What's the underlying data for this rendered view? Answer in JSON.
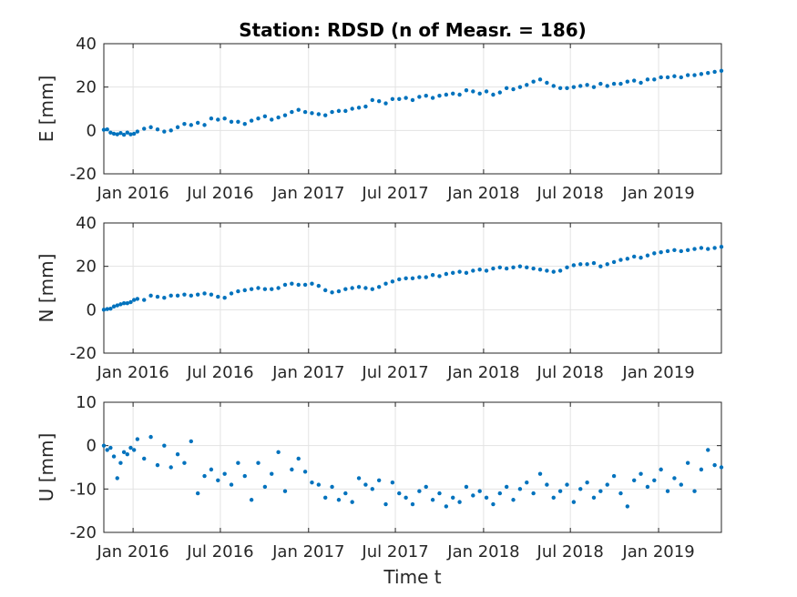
{
  "figure": {
    "title": "Station: RDSD (n of Measr. = 186)",
    "xlabel": "Time t"
  },
  "colors": {
    "marker": "#0072bd",
    "grid": "#e3e3e3",
    "axis": "#262626"
  },
  "chart_data": [
    {
      "type": "scatter",
      "name": "E",
      "ylabel": "E [mm]",
      "ylim": [
        -20,
        40
      ],
      "yticks": [
        -20,
        0,
        20,
        40
      ],
      "xlim": [
        "2015-11-01",
        "2019-05-12"
      ],
      "xticks": [
        "Jan 2016",
        "Jul 2016",
        "Jan 2017",
        "Jul 2017",
        "Jan 2018",
        "Jul 2018",
        "Jan 2019"
      ],
      "grid": true,
      "x": [
        "2015-11-01",
        "2015-11-08",
        "2015-11-15",
        "2015-11-22",
        "2015-11-29",
        "2015-12-06",
        "2015-12-13",
        "2015-12-20",
        "2015-12-27",
        "2016-01-03",
        "2016-01-10",
        "2016-01-24",
        "2016-02-07",
        "2016-02-21",
        "2016-03-06",
        "2016-03-20",
        "2016-04-03",
        "2016-04-17",
        "2016-05-01",
        "2016-05-15",
        "2016-05-29",
        "2016-06-12",
        "2016-06-26",
        "2016-07-10",
        "2016-07-24",
        "2016-08-07",
        "2016-08-21",
        "2016-09-04",
        "2016-09-18",
        "2016-10-02",
        "2016-10-16",
        "2016-10-30",
        "2016-11-13",
        "2016-11-27",
        "2016-12-11",
        "2016-12-25",
        "2017-01-08",
        "2017-01-22",
        "2017-02-05",
        "2017-02-19",
        "2017-03-05",
        "2017-03-19",
        "2017-04-02",
        "2017-04-16",
        "2017-04-30",
        "2017-05-14",
        "2017-05-28",
        "2017-06-11",
        "2017-06-25",
        "2017-07-09",
        "2017-07-23",
        "2017-08-06",
        "2017-08-20",
        "2017-09-03",
        "2017-09-17",
        "2017-10-01",
        "2017-10-15",
        "2017-10-29",
        "2017-11-12",
        "2017-11-26",
        "2017-12-10",
        "2017-12-24",
        "2018-01-07",
        "2018-01-21",
        "2018-02-04",
        "2018-02-18",
        "2018-03-04",
        "2018-03-18",
        "2018-04-01",
        "2018-04-15",
        "2018-04-29",
        "2018-05-13",
        "2018-05-27",
        "2018-06-10",
        "2018-06-24",
        "2018-07-08",
        "2018-07-22",
        "2018-08-05",
        "2018-08-19",
        "2018-09-02",
        "2018-09-16",
        "2018-09-30",
        "2018-10-14",
        "2018-10-28",
        "2018-11-11",
        "2018-11-25",
        "2018-12-09",
        "2018-12-23",
        "2019-01-06",
        "2019-01-20",
        "2019-02-03",
        "2019-02-17",
        "2019-03-03",
        "2019-03-17",
        "2019-03-31",
        "2019-04-14",
        "2019-04-28",
        "2019-05-12"
      ],
      "y": [
        0.3,
        0.5,
        -1.0,
        -1.5,
        -1.8,
        -1.2,
        -2.0,
        -1.0,
        -1.8,
        -1.5,
        -0.5,
        0.8,
        1.5,
        0.5,
        -0.5,
        0.0,
        1.5,
        3.0,
        2.5,
        3.5,
        2.5,
        5.5,
        5.0,
        5.5,
        4.0,
        4.0,
        3.0,
        4.5,
        5.5,
        6.5,
        5.0,
        6.0,
        7.0,
        8.5,
        9.5,
        8.5,
        8.0,
        7.5,
        7.0,
        8.5,
        9.0,
        9.0,
        10.0,
        10.5,
        11.0,
        14.0,
        13.5,
        12.5,
        14.5,
        14.5,
        15.0,
        14.0,
        15.5,
        16.0,
        15.0,
        16.0,
        16.5,
        17.0,
        16.5,
        18.5,
        18.0,
        17.0,
        18.0,
        16.5,
        17.5,
        19.5,
        19.0,
        20.0,
        21.0,
        22.5,
        23.5,
        22.0,
        20.5,
        19.5,
        19.5,
        20.0,
        20.5,
        21.0,
        20.0,
        21.5,
        20.5,
        21.5,
        21.5,
        22.5,
        23.0,
        22.0,
        23.5,
        23.5,
        24.5,
        24.5,
        25.0,
        24.5,
        25.5,
        25.5,
        26.0,
        26.5,
        27.0,
        27.5
      ]
    },
    {
      "type": "scatter",
      "name": "N",
      "ylabel": "N [mm]",
      "ylim": [
        -20,
        40
      ],
      "yticks": [
        -20,
        0,
        20,
        40
      ],
      "xlim": [
        "2015-11-01",
        "2019-05-12"
      ],
      "xticks": [
        "Jan 2016",
        "Jul 2016",
        "Jan 2017",
        "Jul 2017",
        "Jan 2018",
        "Jul 2018",
        "Jan 2019"
      ],
      "grid": true,
      "x": [
        "2015-11-01",
        "2015-11-08",
        "2015-11-15",
        "2015-11-22",
        "2015-11-29",
        "2015-12-06",
        "2015-12-13",
        "2015-12-20",
        "2015-12-27",
        "2016-01-03",
        "2016-01-10",
        "2016-01-24",
        "2016-02-07",
        "2016-02-21",
        "2016-03-06",
        "2016-03-20",
        "2016-04-03",
        "2016-04-17",
        "2016-05-01",
        "2016-05-15",
        "2016-05-29",
        "2016-06-12",
        "2016-06-26",
        "2016-07-10",
        "2016-07-24",
        "2016-08-07",
        "2016-08-21",
        "2016-09-04",
        "2016-09-18",
        "2016-10-02",
        "2016-10-16",
        "2016-10-30",
        "2016-11-13",
        "2016-11-27",
        "2016-12-11",
        "2016-12-25",
        "2017-01-08",
        "2017-01-22",
        "2017-02-05",
        "2017-02-19",
        "2017-03-05",
        "2017-03-19",
        "2017-04-02",
        "2017-04-16",
        "2017-04-30",
        "2017-05-14",
        "2017-05-28",
        "2017-06-11",
        "2017-06-25",
        "2017-07-09",
        "2017-07-23",
        "2017-08-06",
        "2017-08-20",
        "2017-09-03",
        "2017-09-17",
        "2017-10-01",
        "2017-10-15",
        "2017-10-29",
        "2017-11-12",
        "2017-11-26",
        "2017-12-10",
        "2017-12-24",
        "2018-01-07",
        "2018-01-21",
        "2018-02-04",
        "2018-02-18",
        "2018-03-04",
        "2018-03-18",
        "2018-04-01",
        "2018-04-15",
        "2018-04-29",
        "2018-05-13",
        "2018-05-27",
        "2018-06-10",
        "2018-06-24",
        "2018-07-08",
        "2018-07-22",
        "2018-08-05",
        "2018-08-19",
        "2018-09-02",
        "2018-09-16",
        "2018-09-30",
        "2018-10-14",
        "2018-10-28",
        "2018-11-11",
        "2018-11-25",
        "2018-12-09",
        "2018-12-23",
        "2019-01-06",
        "2019-01-20",
        "2019-02-03",
        "2019-02-17",
        "2019-03-03",
        "2019-03-17",
        "2019-03-31",
        "2019-04-14",
        "2019-04-28",
        "2019-05-12"
      ],
      "y": [
        0.0,
        0.3,
        0.5,
        1.5,
        2.0,
        2.5,
        3.0,
        3.0,
        3.5,
        4.5,
        5.0,
        4.5,
        6.5,
        6.0,
        5.5,
        6.5,
        6.5,
        7.0,
        6.5,
        7.0,
        7.5,
        7.0,
        6.0,
        5.5,
        7.5,
        8.5,
        9.0,
        9.5,
        10.0,
        9.5,
        9.5,
        10.0,
        11.5,
        12.0,
        11.5,
        11.5,
        12.0,
        11.0,
        9.0,
        8.0,
        8.5,
        9.5,
        10.0,
        10.5,
        10.0,
        9.5,
        10.5,
        12.0,
        13.0,
        14.0,
        14.5,
        14.5,
        15.0,
        15.0,
        16.0,
        15.5,
        16.5,
        17.0,
        17.5,
        17.0,
        18.0,
        18.5,
        18.0,
        19.0,
        19.5,
        19.0,
        19.5,
        20.0,
        19.5,
        19.0,
        18.5,
        18.0,
        17.5,
        18.0,
        19.5,
        20.5,
        21.0,
        21.0,
        21.5,
        20.0,
        21.0,
        22.0,
        23.0,
        23.5,
        24.5,
        24.0,
        25.0,
        26.0,
        26.5,
        27.0,
        27.5,
        27.0,
        27.5,
        28.0,
        28.5,
        28.0,
        28.5,
        29.0
      ]
    },
    {
      "type": "scatter",
      "name": "U",
      "ylabel": "U [mm]",
      "ylim": [
        -20,
        10
      ],
      "yticks": [
        -20,
        -10,
        0,
        10
      ],
      "xlim": [
        "2015-11-01",
        "2019-05-12"
      ],
      "xticks": [
        "Jan 2016",
        "Jul 2016",
        "Jan 2017",
        "Jul 2017",
        "Jan 2018",
        "Jul 2018",
        "Jan 2019"
      ],
      "grid": true,
      "x": [
        "2015-11-01",
        "2015-11-08",
        "2015-11-15",
        "2015-11-22",
        "2015-11-29",
        "2015-12-06",
        "2015-12-13",
        "2015-12-20",
        "2015-12-27",
        "2016-01-03",
        "2016-01-10",
        "2016-01-24",
        "2016-02-07",
        "2016-02-21",
        "2016-03-06",
        "2016-03-20",
        "2016-04-03",
        "2016-04-17",
        "2016-05-01",
        "2016-05-15",
        "2016-05-29",
        "2016-06-12",
        "2016-06-26",
        "2016-07-10",
        "2016-07-24",
        "2016-08-07",
        "2016-08-21",
        "2016-09-04",
        "2016-09-18",
        "2016-10-02",
        "2016-10-16",
        "2016-10-30",
        "2016-11-13",
        "2016-11-27",
        "2016-12-11",
        "2016-12-25",
        "2017-01-08",
        "2017-01-22",
        "2017-02-05",
        "2017-02-19",
        "2017-03-05",
        "2017-03-19",
        "2017-04-02",
        "2017-04-16",
        "2017-04-30",
        "2017-05-14",
        "2017-05-28",
        "2017-06-11",
        "2017-06-25",
        "2017-07-09",
        "2017-07-23",
        "2017-08-06",
        "2017-08-20",
        "2017-09-03",
        "2017-09-17",
        "2017-10-01",
        "2017-10-15",
        "2017-10-29",
        "2017-11-12",
        "2017-11-26",
        "2017-12-10",
        "2017-12-24",
        "2018-01-07",
        "2018-01-21",
        "2018-02-04",
        "2018-02-18",
        "2018-03-04",
        "2018-03-18",
        "2018-04-01",
        "2018-04-15",
        "2018-04-29",
        "2018-05-13",
        "2018-05-27",
        "2018-06-10",
        "2018-06-24",
        "2018-07-08",
        "2018-07-22",
        "2018-08-05",
        "2018-08-19",
        "2018-09-02",
        "2018-09-16",
        "2018-09-30",
        "2018-10-14",
        "2018-10-28",
        "2018-11-11",
        "2018-11-25",
        "2018-12-09",
        "2018-12-23",
        "2019-01-06",
        "2019-01-20",
        "2019-02-03",
        "2019-02-17",
        "2019-03-03",
        "2019-03-17",
        "2019-03-31",
        "2019-04-14",
        "2019-04-28",
        "2019-05-12"
      ],
      "y": [
        0.0,
        -1.0,
        -0.5,
        -2.5,
        -7.5,
        -4.0,
        -1.5,
        -2.0,
        -0.5,
        -1.0,
        1.5,
        -3.0,
        2.0,
        -4.5,
        0.0,
        -5.0,
        -2.0,
        -4.0,
        1.0,
        -11.0,
        -7.0,
        -5.5,
        -8.0,
        -6.5,
        -9.0,
        -4.0,
        -7.0,
        -12.5,
        -4.0,
        -9.5,
        -6.5,
        -1.5,
        -10.5,
        -5.5,
        -3.0,
        -6.0,
        -8.5,
        -9.0,
        -12.0,
        -9.5,
        -12.5,
        -11.0,
        -13.0,
        -7.5,
        -9.0,
        -10.0,
        -8.0,
        -13.5,
        -8.5,
        -11.0,
        -12.0,
        -13.5,
        -10.5,
        -9.5,
        -12.5,
        -11.0,
        -14.0,
        -12.0,
        -13.0,
        -9.5,
        -11.5,
        -10.5,
        -12.0,
        -13.5,
        -11.0,
        -9.5,
        -12.5,
        -10.0,
        -8.5,
        -11.0,
        -6.5,
        -9.0,
        -12.0,
        -10.5,
        -9.0,
        -13.0,
        -10.0,
        -8.5,
        -12.0,
        -10.5,
        -9.0,
        -7.0,
        -11.0,
        -14.0,
        -8.0,
        -6.5,
        -9.5,
        -8.0,
        -5.5,
        -10.5,
        -7.5,
        -9.0,
        -4.0,
        -10.5,
        -5.5,
        -1.0,
        -4.5,
        -5.0
      ]
    }
  ]
}
